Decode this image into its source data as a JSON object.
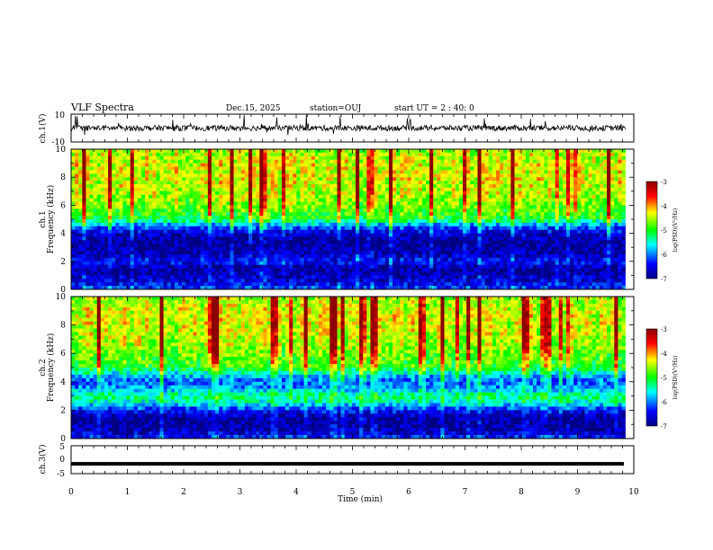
{
  "header": {
    "title": "VLF Spectra",
    "date": "Dec.15, 2025",
    "station": "station=OUJ",
    "start_ut": "start  UT =  2 : 40: 0"
  },
  "chart_data": [
    {
      "type": "line",
      "panel": "ch1-waveform",
      "ylabel": "ch.1(V)",
      "ylim": [
        -10,
        10
      ],
      "ytick_labels": [
        "10",
        "-10"
      ],
      "xlim": [
        0,
        10
      ],
      "baseline": 0,
      "description_values": {
        "mean": 0,
        "approx_noise_amplitude": 2
      }
    },
    {
      "type": "heatmap",
      "panel": "ch1-spectrogram",
      "ylabel_line1": "ch.1",
      "ylabel_line2": "Frequency (kHz)",
      "ylim": [
        0,
        10
      ],
      "ytick_labels": [
        "0",
        "2",
        "4",
        "6",
        "8",
        "10"
      ],
      "xlim": [
        0,
        10
      ],
      "data_end_min": 9.85,
      "colorbar": {
        "label": "log(PSD)(V²/Hz)",
        "range": [
          -7,
          -3
        ],
        "tick_labels": [
          "-3",
          "-4",
          "-5",
          "-6",
          "-7"
        ]
      },
      "spectral_profile_log_psd": {
        "freq_khz": [
          0,
          0.5,
          1,
          1.5,
          2,
          2.5,
          3,
          3.5,
          4,
          4.5,
          5,
          6,
          7,
          8,
          9,
          10
        ],
        "values": [
          -6.2,
          -6.6,
          -6.8,
          -6.9,
          -6.4,
          -6.8,
          -6.9,
          -6.9,
          -6.7,
          -6.2,
          -5.2,
          -4.9,
          -4.7,
          -4.6,
          -4.6,
          -4.8
        ]
      }
    },
    {
      "type": "heatmap",
      "panel": "ch2-spectrogram",
      "ylabel_line1": "ch.2",
      "ylabel_line2": "Frequency (kHz)",
      "ylim": [
        0,
        10
      ],
      "ytick_labels": [
        "0",
        "2",
        "4",
        "6",
        "8",
        "10"
      ],
      "xlim": [
        0,
        10
      ],
      "data_end_min": 9.85,
      "colorbar": {
        "label": "log(PSD)(V²/Hz)",
        "range": [
          -7,
          -3
        ],
        "tick_labels": [
          "-3",
          "-4",
          "-5",
          "-6",
          "-7"
        ]
      },
      "spectral_profile_log_psd": {
        "freq_khz": [
          0,
          0.5,
          1,
          1.5,
          2,
          2.5,
          3,
          3.5,
          4,
          4.5,
          5,
          6,
          7,
          8,
          9,
          10
        ],
        "values": [
          -6.3,
          -6.8,
          -6.9,
          -6.9,
          -6.4,
          -5.6,
          -5.3,
          -5.9,
          -6.2,
          -5.8,
          -5.1,
          -4.9,
          -4.7,
          -4.6,
          -4.6,
          -4.8
        ]
      }
    },
    {
      "type": "line",
      "panel": "ch3-waveform",
      "ylabel": "ch.3(V)",
      "ylim": [
        -5,
        5
      ],
      "ytick_labels": [
        "5",
        "0",
        "-5"
      ],
      "xlim": [
        0,
        10
      ],
      "values_constant": -1.5
    }
  ],
  "xaxis": {
    "xlabel": "Time (min)",
    "tick_labels": [
      "0",
      "1",
      "2",
      "3",
      "4",
      "5",
      "6",
      "7",
      "8",
      "9",
      "10"
    ]
  },
  "colors": {
    "scale": [
      "#000080",
      "#0000ff",
      "#00ffff",
      "#00ff00",
      "#ffff00",
      "#ff0000",
      "#8b0000"
    ]
  }
}
